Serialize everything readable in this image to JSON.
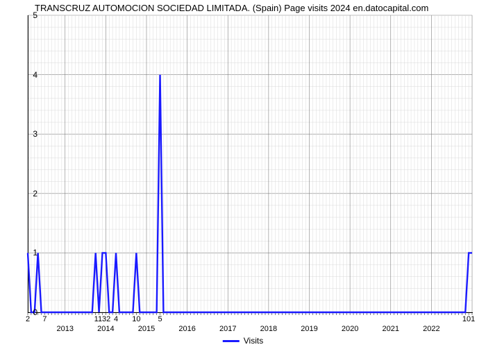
{
  "title": "TRANSCRUZ AUTOMOCION SOCIEDAD LIMITADA. (Spain) Page visits 2024 en.datocapital.com",
  "chart": {
    "type": "line",
    "series_name": "Visits",
    "series_color": "#1a1aff",
    "line_width": 2.4,
    "background_color": "#ffffff",
    "grid_major_color": "#808080",
    "grid_minor_color": "#d9d9d9",
    "grid_major_width": 0.6,
    "grid_minor_width": 0.5,
    "y": {
      "lim": [
        0,
        5
      ],
      "ticks": [
        0,
        1,
        2,
        3,
        4,
        5
      ],
      "minor_per_major": 5
    },
    "x": {
      "n": 132,
      "months_visible": [
        {
          "idx": 0,
          "label": "2"
        },
        {
          "idx": 5,
          "label": "7"
        },
        {
          "idx": 22,
          "label": "1132"
        },
        {
          "idx": 26,
          "label": "4"
        },
        {
          "idx": 32,
          "label": "10"
        },
        {
          "idx": 39,
          "label": "5"
        },
        {
          "idx": 130,
          "label": "101"
        }
      ],
      "year_labels": [
        {
          "idx": 11,
          "label": "2013"
        },
        {
          "idx": 23,
          "label": "2014"
        },
        {
          "idx": 35,
          "label": "2015"
        },
        {
          "idx": 47,
          "label": "2016"
        },
        {
          "idx": 59,
          "label": "2017"
        },
        {
          "idx": 71,
          "label": "2018"
        },
        {
          "idx": 83,
          "label": "2019"
        },
        {
          "idx": 95,
          "label": "2020"
        },
        {
          "idx": 107,
          "label": "2021"
        },
        {
          "idx": 119,
          "label": "2022"
        }
      ]
    },
    "values": [
      1,
      0,
      0,
      1,
      0,
      0,
      0,
      0,
      0,
      0,
      0,
      0,
      0,
      0,
      0,
      0,
      0,
      0,
      0,
      0,
      1,
      0,
      1,
      1,
      0,
      0,
      1,
      0,
      0,
      0,
      0,
      0,
      1,
      0,
      0,
      0,
      0,
      0,
      0,
      4,
      0,
      0,
      0,
      0,
      0,
      0,
      0,
      0,
      0,
      0,
      0,
      0,
      0,
      0,
      0,
      0,
      0,
      0,
      0,
      0,
      0,
      0,
      0,
      0,
      0,
      0,
      0,
      0,
      0,
      0,
      0,
      0,
      0,
      0,
      0,
      0,
      0,
      0,
      0,
      0,
      0,
      0,
      0,
      0,
      0,
      0,
      0,
      0,
      0,
      0,
      0,
      0,
      0,
      0,
      0,
      0,
      0,
      0,
      0,
      0,
      0,
      0,
      0,
      0,
      0,
      0,
      0,
      0,
      0,
      0,
      0,
      0,
      0,
      0,
      0,
      0,
      0,
      0,
      0,
      0,
      0,
      0,
      0,
      0,
      0,
      0,
      0,
      0,
      0,
      0,
      1,
      1
    ]
  },
  "legend": {
    "label": "Visits"
  }
}
